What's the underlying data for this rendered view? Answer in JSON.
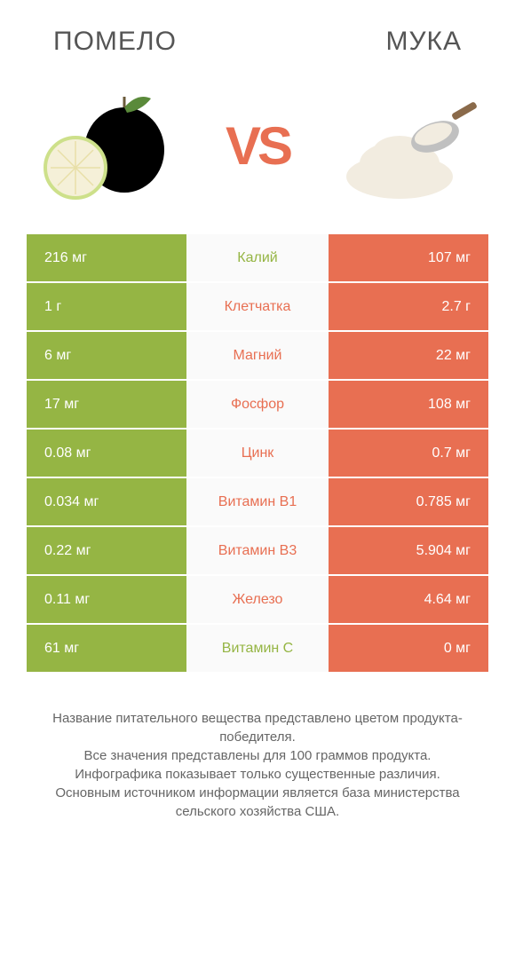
{
  "header": {
    "left_title": "ПОМЕЛО",
    "right_title": "МУКА",
    "vs_label": "VS"
  },
  "colors": {
    "left": "#95b544",
    "right": "#e86f52",
    "mid_bg": "#fafafa",
    "text": "#555555"
  },
  "table": {
    "rows": [
      {
        "left": "216 мг",
        "label": "Калий",
        "right": "107 мг",
        "winner": "left"
      },
      {
        "left": "1 г",
        "label": "Клетчатка",
        "right": "2.7 г",
        "winner": "right"
      },
      {
        "left": "6 мг",
        "label": "Магний",
        "right": "22 мг",
        "winner": "right"
      },
      {
        "left": "17 мг",
        "label": "Фосфор",
        "right": "108 мг",
        "winner": "right"
      },
      {
        "left": "0.08 мг",
        "label": "Цинк",
        "right": "0.7 мг",
        "winner": "right"
      },
      {
        "left": "0.034 мг",
        "label": "Витамин B1",
        "right": "0.785 мг",
        "winner": "right"
      },
      {
        "left": "0.22 мг",
        "label": "Витамин B3",
        "right": "5.904 мг",
        "winner": "right"
      },
      {
        "left": "0.11 мг",
        "label": "Железо",
        "right": "4.64 мг",
        "winner": "right"
      },
      {
        "left": "61 мг",
        "label": "Витамин C",
        "right": "0 мг",
        "winner": "left"
      }
    ]
  },
  "footnote": {
    "line1": "Название питательного вещества представлено цветом продукта-победителя.",
    "line2": "Все значения представлены для 100 граммов продукта.",
    "line3": "Инфографика показывает только существенные различия.",
    "line4": "Основным источником информации является база министерства сельского хозяйства США."
  }
}
